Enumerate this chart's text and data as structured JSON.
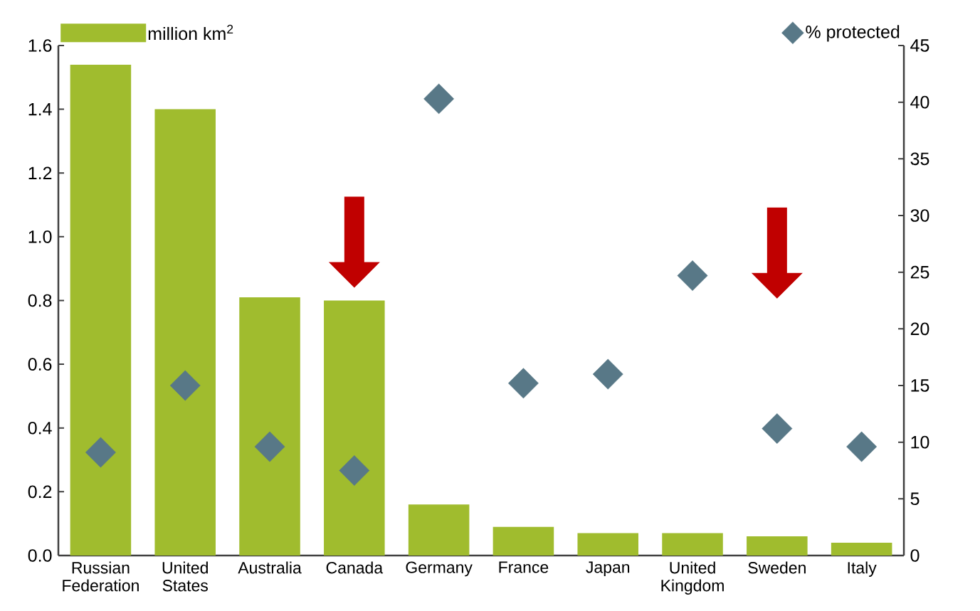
{
  "chart_data": {
    "type": "bar",
    "categories": [
      "Russian Federation",
      "United States",
      "Australia",
      "Canada",
      "Germany",
      "France",
      "Japan",
      "United Kingdom",
      "Sweden",
      "Italy"
    ],
    "series": [
      {
        "name": "million km$^{2}$",
        "color": "#a0bc2e",
        "values": [
          1.54,
          1.4,
          0.81,
          0.8,
          0.16,
          0.09,
          0.07,
          0.07,
          0.06,
          0.04
        ]
      },
      {
        "name": "% protected",
        "type": "scatter",
        "axis": "y2",
        "marker": "diamond",
        "color": "#587887",
        "values": [
          9.1,
          15.0,
          9.6,
          7.5,
          40.3,
          15.2,
          16.0,
          24.7,
          11.2,
          9.6
        ]
      }
    ],
    "ylim": [
      0,
      1.6
    ],
    "yticks": [
      {
        "value": 0,
        "label": "0.0"
      },
      0.2,
      0.4,
      0.6,
      0.8,
      {
        "value": 1,
        "label": "1.0"
      },
      1.2,
      1.4,
      1.6
    ],
    "y2lim": [
      0,
      45
    ],
    "y2ticks": [
      0,
      5,
      10,
      15,
      20,
      25,
      30,
      35,
      40,
      45
    ],
    "legend": "top",
    "grid": false
  }
}
